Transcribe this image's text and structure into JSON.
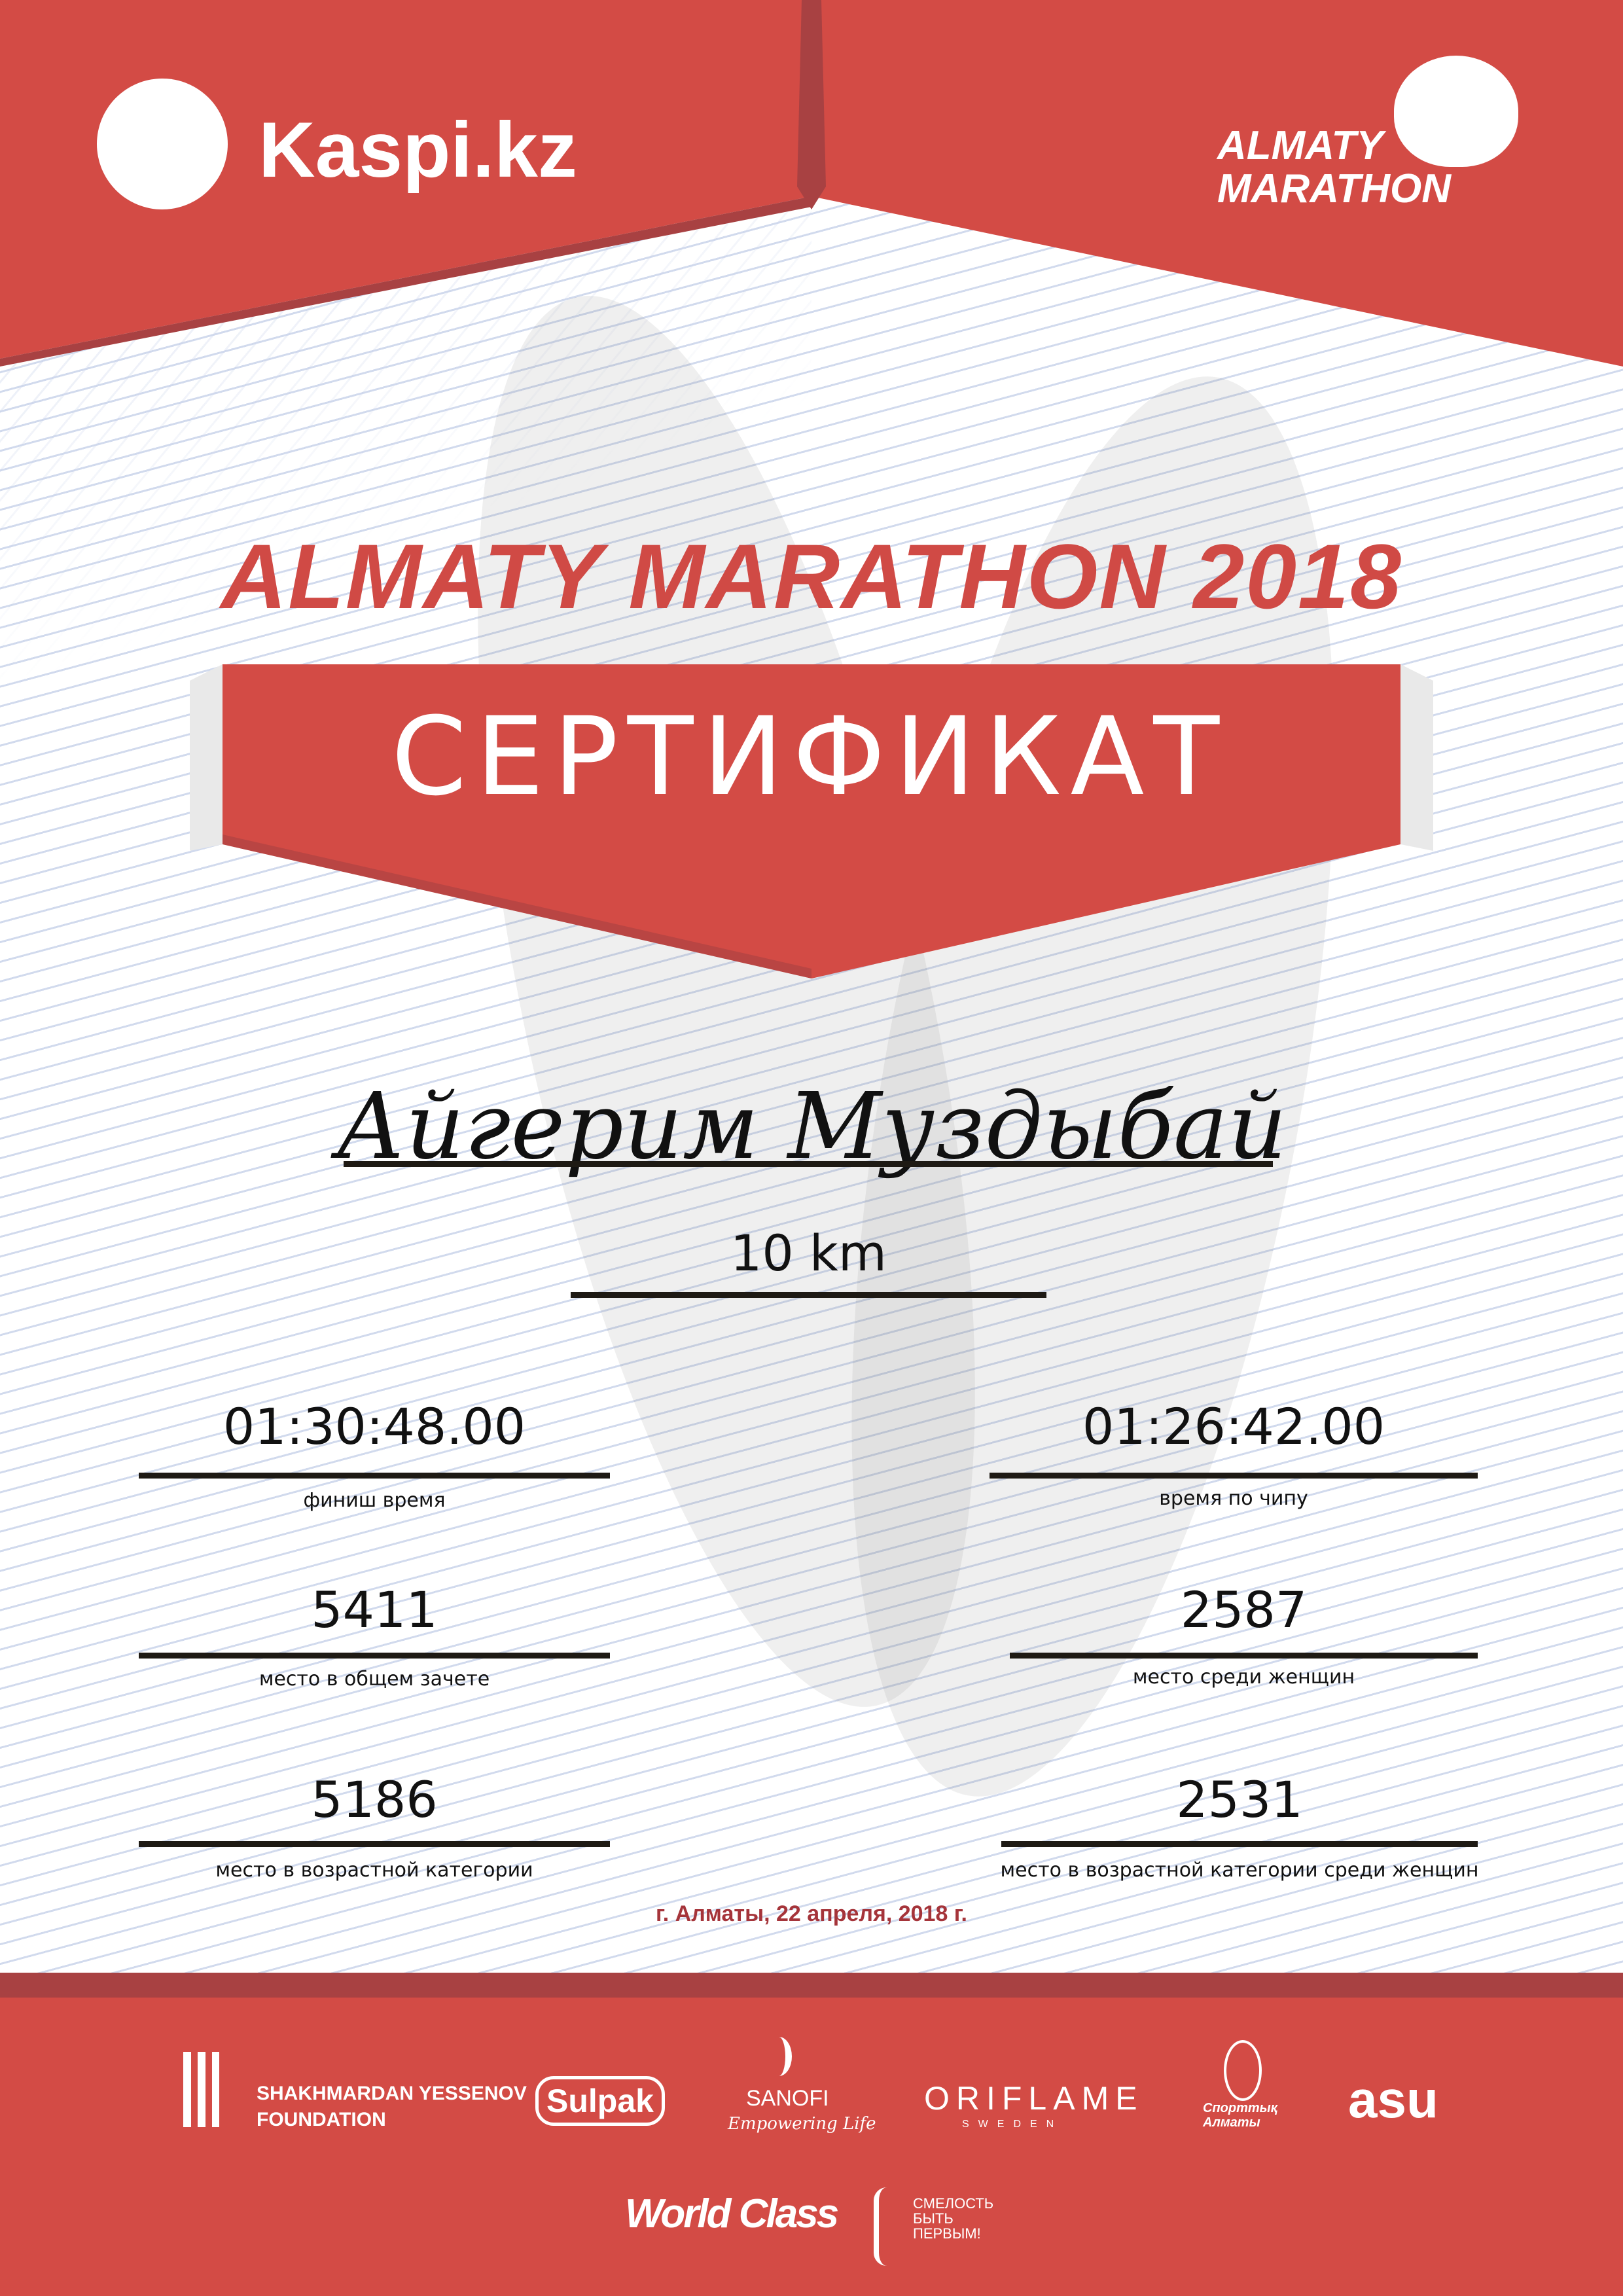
{
  "header": {
    "sponsor_logo": "Kaspi.kz",
    "event_logo_line1": "ALMATY",
    "event_logo_line2": "MARATHON"
  },
  "title": "ALMATY MARATHON 2018",
  "certificate_label": "СЕРТИФИКАТ",
  "participant_name": "Айгерим Муздыбай",
  "distance": "10 km",
  "results": {
    "finish_time": {
      "value": "01:30:48.00",
      "label": "финиш время"
    },
    "chip_time": {
      "value": "01:26:42.00",
      "label": "время по чипу"
    },
    "overall_place": {
      "value": "5411",
      "label": "место в общем зачете"
    },
    "women_place": {
      "value": "2587",
      "label": "место среди женщин"
    },
    "age_category_place": {
      "value": "5186",
      "label": "место в возрастной категории"
    },
    "age_category_women_place": {
      "value": "2531",
      "label": "место в возрастной категории среди женщин"
    }
  },
  "date_line": "г. Алматы, 22 апреля, 2018 г.",
  "sponsors": {
    "yessenov_line1": "SHAKHMARDAN YESSENOV",
    "yessenov_line2": "FOUNDATION",
    "sulpak": "Sulpak",
    "sanofi": "SANOFI",
    "sanofi_tagline": "Empowering Life",
    "oriflame": "ORIFLAME",
    "oriflame_sub": "SWEDEN",
    "sport_almaty": "Спорттық Алматы",
    "asu": "asu",
    "worldclass": "World Class",
    "fund_line1": "СМЕЛОСТЬ",
    "fund_line2": "БЫТЬ",
    "fund_line3": "ПЕРВЫМ!"
  },
  "colors": {
    "brand_red": "#d34b45",
    "dark_red": "#a84142",
    "date_red": "#a5343a"
  }
}
